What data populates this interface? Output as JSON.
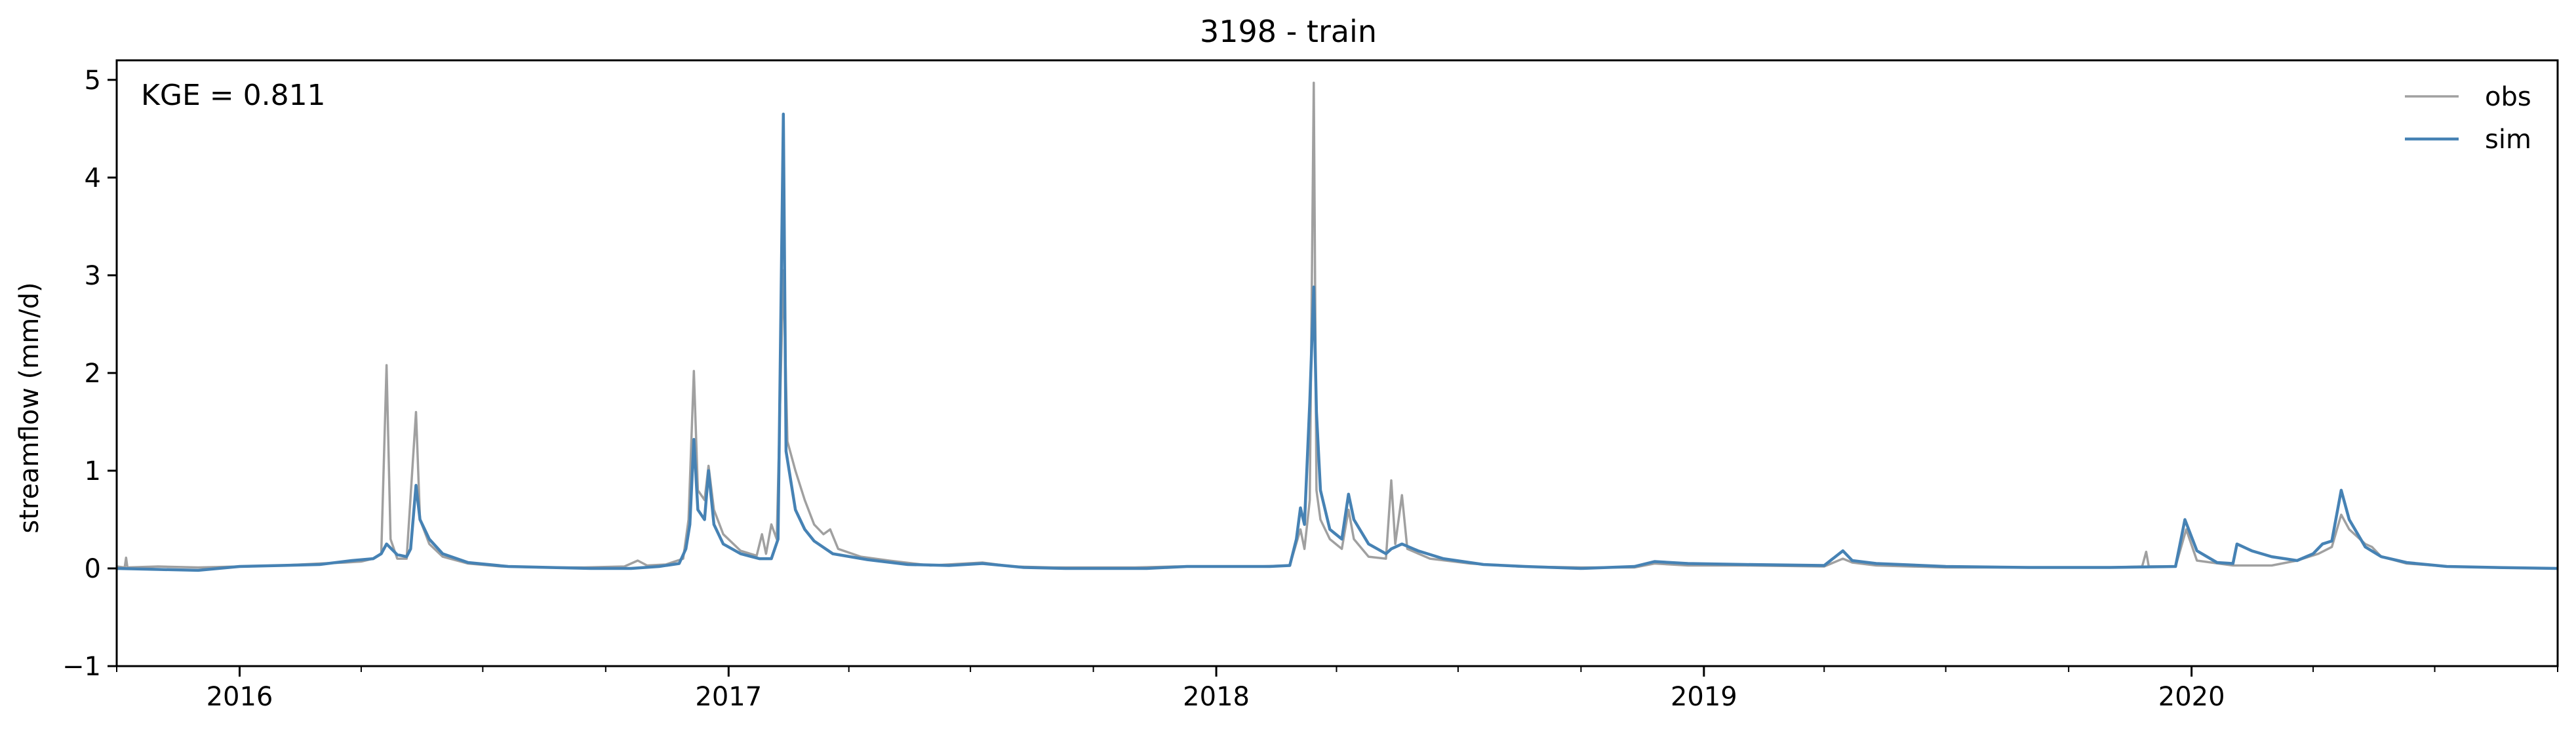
{
  "chart_data": {
    "type": "line",
    "title": "3198 - train",
    "xlabel": "",
    "ylabel": "streamflow (mm/d)",
    "annotation": "KGE = 0.811",
    "xlim": [
      "2015-10-01",
      "2020-10-01"
    ],
    "ylim": [
      -1,
      5.2
    ],
    "x_ticks": [
      "2016",
      "2017",
      "2018",
      "2019",
      "2020"
    ],
    "y_ticks": [
      "−1",
      "0",
      "1",
      "2",
      "3",
      "4",
      "5"
    ],
    "grid": false,
    "legend": "top-right",
    "series": [
      {
        "name": "obs",
        "color": "#a0a0a0",
        "points": [
          [
            "2015-10-01",
            0.02
          ],
          [
            "2015-10-07",
            0.01
          ],
          [
            "2015-10-08",
            0.11
          ],
          [
            "2015-10-09",
            0.01
          ],
          [
            "2015-11-01",
            0.02
          ],
          [
            "2015-12-01",
            0.01
          ],
          [
            "2016-01-01",
            0.02
          ],
          [
            "2016-02-01",
            0.03
          ],
          [
            "2016-03-01",
            0.05
          ],
          [
            "2016-03-20",
            0.06
          ],
          [
            "2016-04-01",
            0.07
          ],
          [
            "2016-04-10",
            0.1
          ],
          [
            "2016-04-16",
            0.15
          ],
          [
            "2016-04-20",
            2.08
          ],
          [
            "2016-04-23",
            0.3
          ],
          [
            "2016-04-28",
            0.1
          ],
          [
            "2016-05-05",
            0.1
          ],
          [
            "2016-05-12",
            1.6
          ],
          [
            "2016-05-15",
            0.5
          ],
          [
            "2016-05-22",
            0.25
          ],
          [
            "2016-06-01",
            0.12
          ],
          [
            "2016-06-20",
            0.05
          ],
          [
            "2016-07-15",
            0.02
          ],
          [
            "2016-08-15",
            0.01
          ],
          [
            "2016-09-15",
            0.01
          ],
          [
            "2016-10-15",
            0.02
          ],
          [
            "2016-10-25",
            0.08
          ],
          [
            "2016-11-01",
            0.03
          ],
          [
            "2016-11-15",
            0.04
          ],
          [
            "2016-11-28",
            0.1
          ],
          [
            "2016-12-02",
            0.5
          ],
          [
            "2016-12-06",
            2.02
          ],
          [
            "2016-12-09",
            0.8
          ],
          [
            "2016-12-14",
            0.7
          ],
          [
            "2016-12-17",
            1.05
          ],
          [
            "2016-12-21",
            0.6
          ],
          [
            "2016-12-28",
            0.35
          ],
          [
            "2017-01-10",
            0.18
          ],
          [
            "2017-01-22",
            0.13
          ],
          [
            "2017-01-26",
            0.35
          ],
          [
            "2017-01-29",
            0.15
          ],
          [
            "2017-02-02",
            0.45
          ],
          [
            "2017-02-06",
            0.3
          ],
          [
            "2017-02-11",
            3.05
          ],
          [
            "2017-02-14",
            1.3
          ],
          [
            "2017-02-20",
            1.0
          ],
          [
            "2017-02-27",
            0.7
          ],
          [
            "2017-03-06",
            0.45
          ],
          [
            "2017-03-13",
            0.35
          ],
          [
            "2017-03-18",
            0.4
          ],
          [
            "2017-03-24",
            0.2
          ],
          [
            "2017-04-10",
            0.12
          ],
          [
            "2017-05-01",
            0.08
          ],
          [
            "2017-06-01",
            0.03
          ],
          [
            "2017-07-10",
            0.06
          ],
          [
            "2017-08-01",
            0.02
          ],
          [
            "2017-09-01",
            0.01
          ],
          [
            "2017-10-01",
            0.01
          ],
          [
            "2017-11-01",
            0.01
          ],
          [
            "2017-12-01",
            0.02
          ],
          [
            "2018-01-01",
            0.02
          ],
          [
            "2018-02-01",
            0.02
          ],
          [
            "2018-02-25",
            0.03
          ],
          [
            "2018-03-05",
            0.4
          ],
          [
            "2018-03-08",
            0.2
          ],
          [
            "2018-03-12",
            0.7
          ],
          [
            "2018-03-15",
            4.97
          ],
          [
            "2018-03-17",
            0.8
          ],
          [
            "2018-03-20",
            0.5
          ],
          [
            "2018-03-27",
            0.3
          ],
          [
            "2018-04-05",
            0.2
          ],
          [
            "2018-04-10",
            0.6
          ],
          [
            "2018-04-14",
            0.3
          ],
          [
            "2018-04-25",
            0.12
          ],
          [
            "2018-05-08",
            0.1
          ],
          [
            "2018-05-12",
            0.9
          ],
          [
            "2018-05-15",
            0.25
          ],
          [
            "2018-05-20",
            0.75
          ],
          [
            "2018-05-24",
            0.2
          ],
          [
            "2018-06-10",
            0.1
          ],
          [
            "2018-07-10",
            0.05
          ],
          [
            "2018-08-15",
            0.02
          ],
          [
            "2018-10-01",
            0.01
          ],
          [
            "2018-11-10",
            0.01
          ],
          [
            "2018-11-25",
            0.05
          ],
          [
            "2018-12-20",
            0.03
          ],
          [
            "2019-02-01",
            0.03
          ],
          [
            "2019-04-01",
            0.02
          ],
          [
            "2019-04-15",
            0.1
          ],
          [
            "2019-04-22",
            0.06
          ],
          [
            "2019-05-10",
            0.03
          ],
          [
            "2019-07-01",
            0.01
          ],
          [
            "2019-09-01",
            0.01
          ],
          [
            "2019-11-01",
            0.01
          ],
          [
            "2019-11-25",
            0.02
          ],
          [
            "2019-11-28",
            0.17
          ],
          [
            "2019-11-30",
            0.02
          ],
          [
            "2019-12-20",
            0.02
          ],
          [
            "2019-12-28",
            0.4
          ],
          [
            "2020-01-05",
            0.08
          ],
          [
            "2020-02-01",
            0.03
          ],
          [
            "2020-03-01",
            0.03
          ],
          [
            "2020-03-20",
            0.08
          ],
          [
            "2020-04-05",
            0.15
          ],
          [
            "2020-04-15",
            0.22
          ],
          [
            "2020-04-22",
            0.55
          ],
          [
            "2020-04-28",
            0.4
          ],
          [
            "2020-05-10",
            0.25
          ],
          [
            "2020-05-15",
            0.22
          ],
          [
            "2020-05-22",
            0.12
          ],
          [
            "2020-06-10",
            0.05
          ],
          [
            "2020-07-10",
            0.02
          ],
          [
            "2020-08-15",
            0.01
          ],
          [
            "2020-10-01",
            0.0
          ]
        ]
      },
      {
        "name": "sim",
        "color": "#4682b4",
        "points": [
          [
            "2015-10-01",
            0.0
          ],
          [
            "2015-11-01",
            -0.01
          ],
          [
            "2015-12-01",
            -0.02
          ],
          [
            "2016-01-01",
            0.02
          ],
          [
            "2016-02-01",
            0.03
          ],
          [
            "2016-03-01",
            0.04
          ],
          [
            "2016-03-25",
            0.08
          ],
          [
            "2016-04-10",
            0.1
          ],
          [
            "2016-04-16",
            0.15
          ],
          [
            "2016-04-20",
            0.25
          ],
          [
            "2016-04-28",
            0.14
          ],
          [
            "2016-05-05",
            0.12
          ],
          [
            "2016-05-08",
            0.2
          ],
          [
            "2016-05-12",
            0.85
          ],
          [
            "2016-05-15",
            0.5
          ],
          [
            "2016-05-22",
            0.3
          ],
          [
            "2016-06-01",
            0.15
          ],
          [
            "2016-06-20",
            0.06
          ],
          [
            "2016-07-20",
            0.02
          ],
          [
            "2016-08-20",
            0.01
          ],
          [
            "2016-09-20",
            0.0
          ],
          [
            "2016-10-20",
            0.0
          ],
          [
            "2016-11-10",
            0.02
          ],
          [
            "2016-11-25",
            0.05
          ],
          [
            "2016-11-30",
            0.2
          ],
          [
            "2016-12-03",
            0.45
          ],
          [
            "2016-12-06",
            1.32
          ],
          [
            "2016-12-09",
            0.6
          ],
          [
            "2016-12-14",
            0.5
          ],
          [
            "2016-12-17",
            1.0
          ],
          [
            "2016-12-21",
            0.45
          ],
          [
            "2016-12-28",
            0.25
          ],
          [
            "2017-01-10",
            0.15
          ],
          [
            "2017-01-24",
            0.1
          ],
          [
            "2017-02-02",
            0.1
          ],
          [
            "2017-02-07",
            0.3
          ],
          [
            "2017-02-11",
            4.65
          ],
          [
            "2017-02-13",
            1.2
          ],
          [
            "2017-02-20",
            0.6
          ],
          [
            "2017-02-27",
            0.4
          ],
          [
            "2017-03-06",
            0.28
          ],
          [
            "2017-03-20",
            0.15
          ],
          [
            "2017-04-15",
            0.09
          ],
          [
            "2017-05-15",
            0.04
          ],
          [
            "2017-06-15",
            0.03
          ],
          [
            "2017-07-10",
            0.05
          ],
          [
            "2017-08-10",
            0.01
          ],
          [
            "2017-09-10",
            0.0
          ],
          [
            "2017-10-10",
            0.0
          ],
          [
            "2017-11-10",
            0.0
          ],
          [
            "2017-12-10",
            0.02
          ],
          [
            "2018-01-10",
            0.02
          ],
          [
            "2018-02-10",
            0.02
          ],
          [
            "2018-02-25",
            0.03
          ],
          [
            "2018-03-02",
            0.3
          ],
          [
            "2018-03-05",
            0.62
          ],
          [
            "2018-03-08",
            0.45
          ],
          [
            "2018-03-12",
            1.7
          ],
          [
            "2018-03-15",
            2.88
          ],
          [
            "2018-03-17",
            1.6
          ],
          [
            "2018-03-20",
            0.8
          ],
          [
            "2018-03-27",
            0.4
          ],
          [
            "2018-04-05",
            0.3
          ],
          [
            "2018-04-10",
            0.76
          ],
          [
            "2018-04-14",
            0.5
          ],
          [
            "2018-04-25",
            0.25
          ],
          [
            "2018-05-08",
            0.15
          ],
          [
            "2018-05-12",
            0.2
          ],
          [
            "2018-05-20",
            0.25
          ],
          [
            "2018-06-01",
            0.18
          ],
          [
            "2018-06-20",
            0.1
          ],
          [
            "2018-07-20",
            0.04
          ],
          [
            "2018-08-20",
            0.02
          ],
          [
            "2018-10-01",
            0.0
          ],
          [
            "2018-11-10",
            0.02
          ],
          [
            "2018-11-25",
            0.07
          ],
          [
            "2018-12-20",
            0.05
          ],
          [
            "2019-02-01",
            0.04
          ],
          [
            "2019-04-01",
            0.03
          ],
          [
            "2019-04-15",
            0.18
          ],
          [
            "2019-04-22",
            0.08
          ],
          [
            "2019-05-10",
            0.05
          ],
          [
            "2019-07-01",
            0.02
          ],
          [
            "2019-09-01",
            0.01
          ],
          [
            "2019-11-01",
            0.01
          ],
          [
            "2019-12-20",
            0.02
          ],
          [
            "2019-12-27",
            0.5
          ],
          [
            "2020-01-05",
            0.18
          ],
          [
            "2020-01-20",
            0.06
          ],
          [
            "2020-02-01",
            0.05
          ],
          [
            "2020-02-04",
            0.25
          ],
          [
            "2020-02-15",
            0.18
          ],
          [
            "2020-03-01",
            0.12
          ],
          [
            "2020-03-20",
            0.08
          ],
          [
            "2020-04-01",
            0.15
          ],
          [
            "2020-04-08",
            0.25
          ],
          [
            "2020-04-15",
            0.28
          ],
          [
            "2020-04-22",
            0.8
          ],
          [
            "2020-04-28",
            0.5
          ],
          [
            "2020-05-10",
            0.22
          ],
          [
            "2020-05-22",
            0.12
          ],
          [
            "2020-06-10",
            0.06
          ],
          [
            "2020-07-10",
            0.02
          ],
          [
            "2020-08-15",
            0.01
          ],
          [
            "2020-10-01",
            0.0
          ]
        ]
      }
    ]
  }
}
